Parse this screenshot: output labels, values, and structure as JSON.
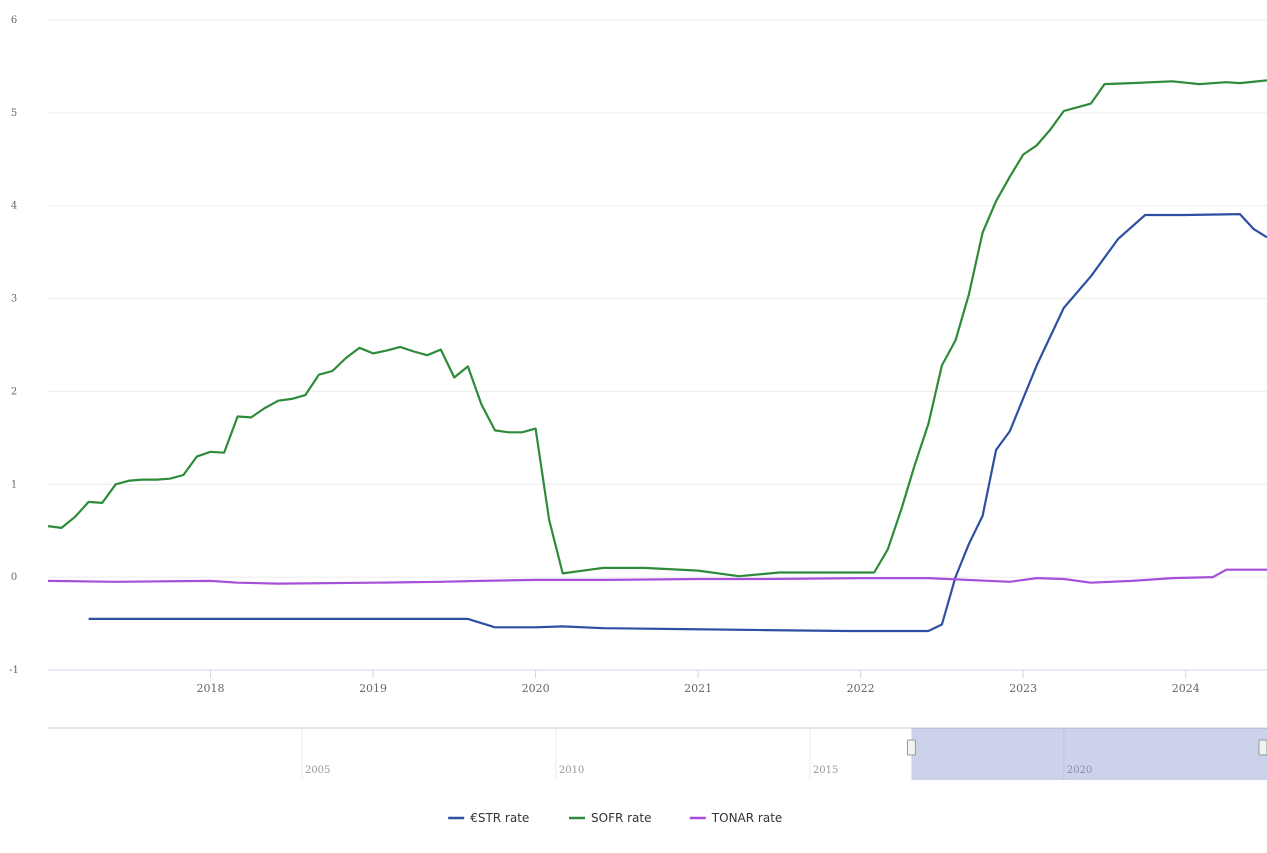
{
  "chart_data": {
    "type": "line",
    "title": "",
    "xlabel": "",
    "ylabel": "",
    "ylim": [
      -1,
      6
    ],
    "xlim": [
      "2017-01",
      "2024-07"
    ],
    "y_ticks": [
      "-1",
      "0",
      "1",
      "2",
      "3",
      "4",
      "5",
      "6"
    ],
    "x_ticks": [
      "2018",
      "2019",
      "2020",
      "2021",
      "2022",
      "2023",
      "2024"
    ],
    "grid": true,
    "legend": "bottom-center",
    "navigator": {
      "ticks": [
        "2005",
        "2010",
        "2015",
        "2020"
      ],
      "range": [
        "2000",
        "2024"
      ],
      "selected": [
        "2017-01",
        "2024-07"
      ]
    },
    "series": [
      {
        "name": "€STR rate",
        "color": "#2f4fa2",
        "points": [
          [
            "2017-04",
            -0.45
          ],
          [
            "2018-01",
            -0.45
          ],
          [
            "2019-01",
            -0.45
          ],
          [
            "2019-06",
            -0.45
          ],
          [
            "2019-08",
            -0.45
          ],
          [
            "2019-10",
            -0.54
          ],
          [
            "2020-01",
            -0.54
          ],
          [
            "2020-03",
            -0.53
          ],
          [
            "2020-06",
            -0.55
          ],
          [
            "2020-12",
            -0.56
          ],
          [
            "2021-06",
            -0.57
          ],
          [
            "2021-12",
            -0.58
          ],
          [
            "2022-04",
            -0.58
          ],
          [
            "2022-06",
            -0.58
          ],
          [
            "2022-07",
            -0.51
          ],
          [
            "2022-08",
            0.0
          ],
          [
            "2022-09",
            0.36
          ],
          [
            "2022-10",
            0.66
          ],
          [
            "2022-11",
            1.37
          ],
          [
            "2022-12",
            1.57
          ],
          [
            "2023-02",
            2.28
          ],
          [
            "2023-04",
            2.9
          ],
          [
            "2023-06",
            3.24
          ],
          [
            "2023-08",
            3.64
          ],
          [
            "2023-10",
            3.9
          ],
          [
            "2024-01",
            3.9
          ],
          [
            "2024-05",
            3.91
          ],
          [
            "2024-06",
            3.75
          ],
          [
            "2024-07",
            3.66
          ]
        ]
      },
      {
        "name": "SOFR rate",
        "color": "#2e8b3a",
        "points": [
          [
            "2017-01",
            0.55
          ],
          [
            "2017-02",
            0.53
          ],
          [
            "2017-03",
            0.65
          ],
          [
            "2017-04",
            0.81
          ],
          [
            "2017-05",
            0.8
          ],
          [
            "2017-06",
            1.0
          ],
          [
            "2017-07",
            1.04
          ],
          [
            "2017-08",
            1.05
          ],
          [
            "2017-09",
            1.05
          ],
          [
            "2017-10",
            1.06
          ],
          [
            "2017-11",
            1.1
          ],
          [
            "2017-12",
            1.3
          ],
          [
            "2018-01",
            1.35
          ],
          [
            "2018-02",
            1.34
          ],
          [
            "2018-03",
            1.73
          ],
          [
            "2018-04",
            1.72
          ],
          [
            "2018-05",
            1.82
          ],
          [
            "2018-06",
            1.9
          ],
          [
            "2018-07",
            1.92
          ],
          [
            "2018-08",
            1.96
          ],
          [
            "2018-09",
            2.18
          ],
          [
            "2018-10",
            2.22
          ],
          [
            "2018-11",
            2.36
          ],
          [
            "2018-12",
            2.47
          ],
          [
            "2019-01",
            2.41
          ],
          [
            "2019-02",
            2.44
          ],
          [
            "2019-03",
            2.48
          ],
          [
            "2019-04",
            2.43
          ],
          [
            "2019-05",
            2.39
          ],
          [
            "2019-06",
            2.45
          ],
          [
            "2019-07",
            2.15
          ],
          [
            "2019-08",
            2.27
          ],
          [
            "2019-09",
            1.86
          ],
          [
            "2019-10",
            1.58
          ],
          [
            "2019-11",
            1.56
          ],
          [
            "2019-12",
            1.56
          ],
          [
            "2020-01",
            1.6
          ],
          [
            "2020-02",
            0.62
          ],
          [
            "2020-03",
            0.04
          ],
          [
            "2020-05",
            0.08
          ],
          [
            "2020-06",
            0.1
          ],
          [
            "2020-09",
            0.1
          ],
          [
            "2021-01",
            0.07
          ],
          [
            "2021-04",
            0.01
          ],
          [
            "2021-07",
            0.05
          ],
          [
            "2022-01",
            0.05
          ],
          [
            "2022-02",
            0.05
          ],
          [
            "2022-03",
            0.3
          ],
          [
            "2022-04",
            0.73
          ],
          [
            "2022-05",
            1.21
          ],
          [
            "2022-06",
            1.65
          ],
          [
            "2022-07",
            2.28
          ],
          [
            "2022-08",
            2.55
          ],
          [
            "2022-09",
            3.05
          ],
          [
            "2022-10",
            3.71
          ],
          [
            "2022-11",
            4.05
          ],
          [
            "2022-12",
            4.31
          ],
          [
            "2023-01",
            4.55
          ],
          [
            "2023-02",
            4.65
          ],
          [
            "2023-03",
            4.82
          ],
          [
            "2023-04",
            5.02
          ],
          [
            "2023-05",
            5.06
          ],
          [
            "2023-06",
            5.1
          ],
          [
            "2023-07",
            5.31
          ],
          [
            "2023-09",
            5.32
          ],
          [
            "2023-12",
            5.34
          ],
          [
            "2024-02",
            5.31
          ],
          [
            "2024-04",
            5.33
          ],
          [
            "2024-05",
            5.32
          ],
          [
            "2024-07",
            5.35
          ]
        ]
      },
      {
        "name": "TONAR rate",
        "color": "#a64fd8",
        "points": [
          [
            "2017-01",
            -0.04
          ],
          [
            "2017-06",
            -0.05
          ],
          [
            "2018-01",
            -0.04
          ],
          [
            "2018-03",
            -0.06
          ],
          [
            "2018-06",
            -0.07
          ],
          [
            "2019-01",
            -0.06
          ],
          [
            "2019-06",
            -0.05
          ],
          [
            "2019-09",
            -0.04
          ],
          [
            "2020-01",
            -0.03
          ],
          [
            "2020-06",
            -0.03
          ],
          [
            "2021-01",
            -0.02
          ],
          [
            "2021-06",
            -0.02
          ],
          [
            "2022-01",
            -0.01
          ],
          [
            "2022-06",
            -0.01
          ],
          [
            "2022-12",
            -0.05
          ],
          [
            "2023-02",
            -0.01
          ],
          [
            "2023-04",
            -0.02
          ],
          [
            "2023-06",
            -0.06
          ],
          [
            "2023-09",
            -0.04
          ],
          [
            "2023-12",
            -0.01
          ],
          [
            "2024-03",
            0.0
          ],
          [
            "2024-04",
            0.08
          ],
          [
            "2024-07",
            0.08
          ]
        ]
      }
    ]
  }
}
